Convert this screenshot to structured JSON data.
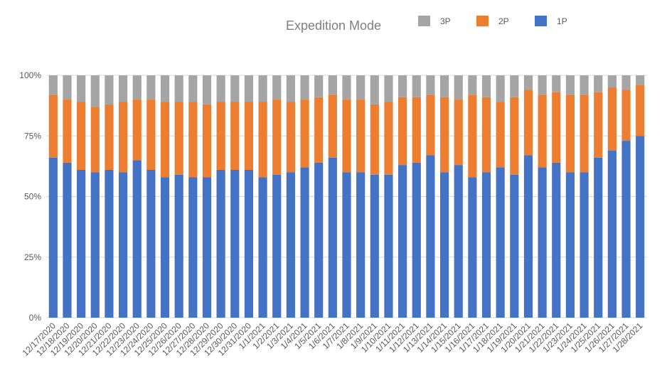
{
  "chart_data": {
    "type": "bar",
    "stacked": true,
    "percent": true,
    "title": "Expedition Mode",
    "xlabel": "",
    "ylabel": "",
    "ylim": [
      0,
      100
    ],
    "y_ticks": [
      "0%",
      "25%",
      "50%",
      "75%",
      "100%"
    ],
    "legend_position": "top-right",
    "grid": true,
    "categories": [
      "12/17/2020",
      "12/18/2020",
      "12/19/2020",
      "12/20/2020",
      "12/21/2020",
      "12/22/2020",
      "12/23/2020",
      "12/24/2020",
      "12/25/2020",
      "12/26/2020",
      "12/27/2020",
      "12/28/2020",
      "12/29/2020",
      "12/30/2020",
      "12/31/2020",
      "1/1/2021",
      "1/2/2021",
      "1/3/2021",
      "1/4/2021",
      "1/5/2021",
      "1/6/2021",
      "1/7/2021",
      "1/8/2021",
      "1/9/2021",
      "1/10/2021",
      "1/11/2021",
      "1/12/2021",
      "1/13/2021",
      "1/14/2021",
      "1/15/2021",
      "1/16/2021",
      "1/17/2021",
      "1/18/2021",
      "1/19/2021",
      "1/20/2021",
      "1/21/2021",
      "1/22/2021",
      "1/23/2021",
      "1/24/2021",
      "1/25/2021",
      "1/26/2021",
      "1/27/2021",
      "1/28/2021"
    ],
    "series": [
      {
        "name": "1P",
        "color": "#4472c4",
        "values": [
          66,
          64,
          61,
          60,
          61,
          60,
          65,
          61,
          58,
          59,
          58,
          58,
          61,
          61,
          61,
          58,
          59,
          60,
          62,
          64,
          66,
          60,
          60,
          59,
          59,
          63,
          64,
          67,
          60,
          63,
          58,
          60,
          62,
          59,
          67,
          62,
          64,
          60,
          60,
          66,
          69,
          73,
          75
        ]
      },
      {
        "name": "2P",
        "color": "#ed7d31",
        "values": [
          26,
          26,
          28,
          27,
          27,
          29,
          25,
          29,
          31,
          30,
          31,
          30,
          28,
          28,
          28,
          31,
          31,
          29,
          28,
          27,
          26,
          30,
          30,
          29,
          30,
          28,
          27,
          25,
          31,
          27,
          34,
          31,
          27,
          32,
          27,
          30,
          29,
          32,
          32,
          27,
          26,
          21,
          21
        ]
      },
      {
        "name": "3P",
        "color": "#a5a5a5",
        "values": [
          8,
          10,
          11,
          13,
          12,
          11,
          10,
          10,
          11,
          11,
          11,
          12,
          11,
          11,
          11,
          11,
          10,
          11,
          10,
          9,
          8,
          10,
          10,
          12,
          11,
          9,
          9,
          8,
          9,
          10,
          8,
          9,
          11,
          9,
          6,
          8,
          7,
          8,
          8,
          7,
          5,
          6,
          4
        ]
      }
    ]
  }
}
